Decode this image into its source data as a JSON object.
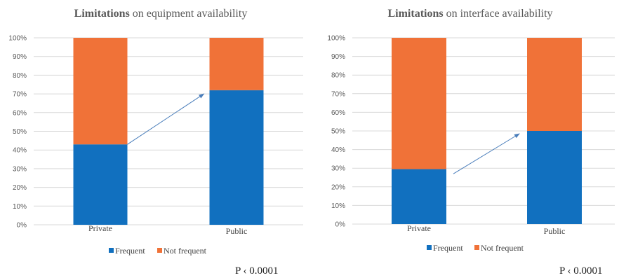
{
  "colors": {
    "frequent": "#1170BF",
    "not_frequent": "#F07238",
    "arrow": "#4A7EBB"
  },
  "chart_data": [
    {
      "type": "bar",
      "stacked": true,
      "title_bold": "Limitations",
      "title_rest": " on equipment availability",
      "categories": [
        "Private",
        "Public"
      ],
      "series": [
        {
          "name": "Frequent",
          "values": [
            43,
            72
          ]
        },
        {
          "name": "Not frequent",
          "values": [
            57,
            28
          ]
        }
      ],
      "ylim": [
        0,
        100
      ],
      "yticks": [
        "0%",
        "10%",
        "20%",
        "30%",
        "40%",
        "50%",
        "60%",
        "70%",
        "80%",
        "90%",
        "100%"
      ],
      "grid": true,
      "legend": "bottom",
      "annotation": "P ‹ 0.0001"
    },
    {
      "type": "bar",
      "stacked": true,
      "title_bold": "Limitations",
      "title_rest": " on interface availability",
      "categories": [
        "Private",
        "Public"
      ],
      "series": [
        {
          "name": "Frequent",
          "values": [
            29.5,
            50
          ]
        },
        {
          "name": "Not frequent",
          "values": [
            70.5,
            50
          ]
        }
      ],
      "ylim": [
        0,
        100
      ],
      "yticks": [
        "0%",
        "10%",
        "20%",
        "30%",
        "40%",
        "50%",
        "60%",
        "70%",
        "80%",
        "90%",
        "100%"
      ],
      "grid": true,
      "legend": "bottom",
      "annotation": "P ‹ 0.0001"
    }
  ]
}
